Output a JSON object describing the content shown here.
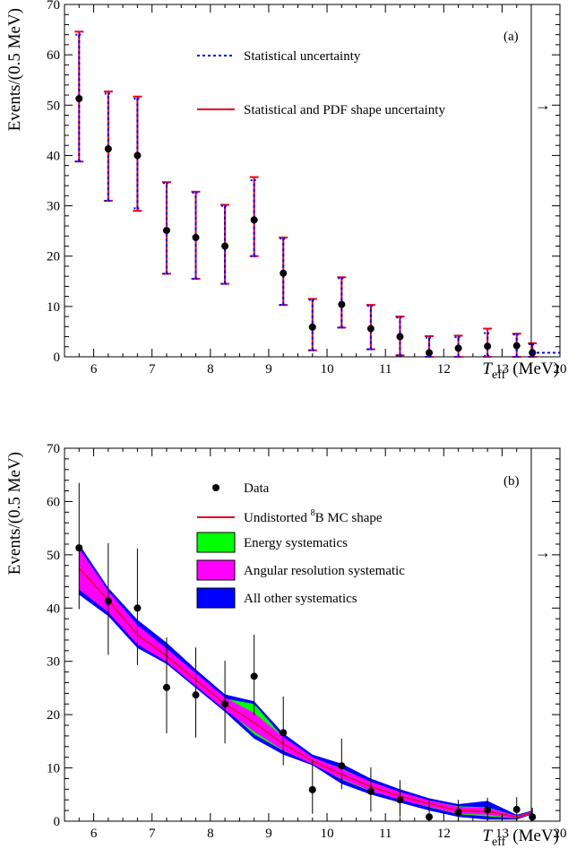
{
  "chart_data": [
    {
      "type": "scatter",
      "panel_label": "(a)",
      "ylabel": "Events/(0.5 MeV)",
      "xlabel_main": "T",
      "xlabel_sub": "eff",
      "xlabel_unit": "(MeV)",
      "xlim": [
        5.5,
        20
      ],
      "ylim": [
        0,
        70
      ],
      "x_ticks": [
        "6",
        "7",
        "8",
        "9",
        "10",
        "11",
        "12",
        "13",
        "20"
      ],
      "y_ticks": [
        "0",
        "10",
        "20",
        "30",
        "40",
        "50",
        "60",
        "70"
      ],
      "legend": [
        {
          "label": "Statistical uncertainty",
          "style": "dashed",
          "color": "#0000ff"
        },
        {
          "label": "Statistical and PDF shape uncertainty",
          "style": "solid",
          "color": "#e8001c"
        }
      ],
      "overflow_arrow": "→",
      "series": [
        {
          "x": [
            5.75,
            6.25,
            6.75,
            7.25,
            7.75,
            8.25,
            8.75,
            9.25,
            9.75,
            10.25,
            10.75,
            11.25,
            11.75,
            12.25,
            12.75,
            13.25,
            13.75
          ],
          "y": [
            51.3,
            41.3,
            40.0,
            25.1,
            23.7,
            22.0,
            27.2,
            16.6,
            5.9,
            10.4,
            5.6,
            4.0,
            0.8,
            1.7,
            2.1,
            2.2,
            0.8
          ],
          "err_stat_low": [
            38.8,
            31.0,
            29.5,
            16.5,
            15.5,
            14.5,
            20.0,
            10.3,
            1.3,
            5.8,
            1.5,
            0.3,
            0.0,
            0.0,
            0.2,
            0.0,
            0.0
          ],
          "err_stat_high": [
            64.0,
            52.3,
            51.3,
            34.5,
            32.6,
            30.0,
            35.1,
            23.5,
            11.3,
            15.6,
            10.1,
            7.8,
            3.8,
            3.9,
            4.7,
            4.4,
            2.5
          ],
          "err_tot_low": [
            38.8,
            31.0,
            29.0,
            16.5,
            15.5,
            14.5,
            20.0,
            10.3,
            1.3,
            5.8,
            1.5,
            0.3,
            0.0,
            0.0,
            0.0,
            0.0,
            0.0
          ],
          "err_tot_high": [
            64.6,
            52.7,
            51.7,
            34.7,
            32.8,
            30.2,
            35.7,
            23.7,
            11.5,
            15.8,
            10.3,
            8.0,
            4.1,
            4.2,
            5.6,
            4.6,
            2.7
          ]
        }
      ]
    },
    {
      "type": "scatter",
      "panel_label": "(b)",
      "ylabel": "Events/(0.5 MeV)",
      "xlabel_main": "T",
      "xlabel_sub": "eff",
      "xlabel_unit": "(MeV)",
      "xlim": [
        5.5,
        20
      ],
      "ylim": [
        0,
        70
      ],
      "x_ticks": [
        "6",
        "7",
        "8",
        "9",
        "10",
        "11",
        "12",
        "13",
        "20"
      ],
      "y_ticks": [
        "0",
        "10",
        "20",
        "30",
        "40",
        "50",
        "60",
        "70"
      ],
      "legend": [
        {
          "label": "Data",
          "style": "marker",
          "color": "#000000"
        },
        {
          "label_pre": "Undistorted ",
          "label_sup": "8",
          "label_post": "B MC shape",
          "style": "line",
          "color": "#e8001c"
        },
        {
          "label": "Energy systematics",
          "style": "box",
          "color": "#00ff00"
        },
        {
          "label": "Angular resolution systematic",
          "style": "box",
          "color": "#ff00ff"
        },
        {
          "label": "All other systematics",
          "style": "box",
          "color": "#0000ff"
        }
      ],
      "overflow_arrow": "→",
      "bands_x": [
        5.75,
        6.25,
        6.75,
        7.25,
        7.75,
        8.25,
        8.75,
        9.25,
        9.75,
        10.25,
        10.75,
        11.25,
        11.75,
        12.25,
        12.75,
        13.25,
        13.75
      ],
      "mc_shape": [
        47.5,
        41.5,
        35.0,
        31.0,
        26.5,
        22.0,
        18.5,
        14.5,
        11.3,
        8.8,
        6.5,
        4.7,
        3.3,
        2.0,
        1.8,
        0.8,
        1.6
      ],
      "band_all_low": [
        42.5,
        38.5,
        32.5,
        29.5,
        25.0,
        20.5,
        15.5,
        12.5,
        10.5,
        7.0,
        5.0,
        3.5,
        2.0,
        0.8,
        0.3,
        0.3,
        1.3
      ],
      "band_all_high": [
        52.0,
        43.8,
        37.8,
        33.5,
        28.5,
        23.8,
        22.5,
        16.5,
        12.5,
        10.8,
        8.0,
        6.0,
        4.3,
        3.2,
        3.8,
        1.2,
        2.0
      ],
      "band_energy_low": [
        45.0,
        40.0,
        34.0,
        30.3,
        25.7,
        21.2,
        16.3,
        13.2,
        10.8,
        7.8,
        5.6,
        4.1,
        2.6,
        1.3,
        0.9,
        0.5,
        1.4
      ],
      "band_energy_high": [
        50.0,
        43.0,
        36.5,
        32.4,
        27.6,
        23.0,
        22.0,
        15.7,
        11.9,
        9.9,
        7.3,
        5.4,
        3.9,
        2.8,
        2.6,
        1.0,
        1.8
      ],
      "band_angular_low": [
        43.5,
        39.2,
        33.2,
        29.9,
        25.4,
        20.9,
        16.8,
        13.3,
        10.7,
        7.9,
        5.7,
        4.0,
        2.7,
        1.4,
        1.2,
        0.5,
        1.4
      ],
      "band_angular_high": [
        51.2,
        43.2,
        36.8,
        32.4,
        27.8,
        23.2,
        20.3,
        15.8,
        12.0,
        9.8,
        7.4,
        5.5,
        3.9,
        2.7,
        2.5,
        1.0,
        1.8
      ],
      "series": [
        {
          "name": "Data",
          "x": [
            5.75,
            6.25,
            6.75,
            7.25,
            7.75,
            8.25,
            8.75,
            9.25,
            9.75,
            10.25,
            10.75,
            11.25,
            11.75,
            12.25,
            12.75,
            13.25,
            13.75
          ],
          "y": [
            51.3,
            41.3,
            40.0,
            25.1,
            23.7,
            22.0,
            27.2,
            16.6,
            5.9,
            10.4,
            5.6,
            4.0,
            0.8,
            1.7,
            2.1,
            2.2,
            0.8
          ],
          "err_low": [
            39.8,
            31.2,
            29.3,
            16.5,
            15.7,
            14.6,
            19.8,
            10.5,
            1.4,
            6.0,
            1.8,
            0.8,
            0.0,
            0.0,
            0.2,
            0.0,
            0.0
          ],
          "err_high": [
            63.5,
            52.2,
            51.2,
            34.5,
            32.6,
            30.1,
            35.0,
            23.4,
            11.5,
            15.5,
            10.1,
            7.7,
            3.8,
            4.0,
            4.4,
            4.5,
            2.5
          ]
        }
      ]
    }
  ]
}
